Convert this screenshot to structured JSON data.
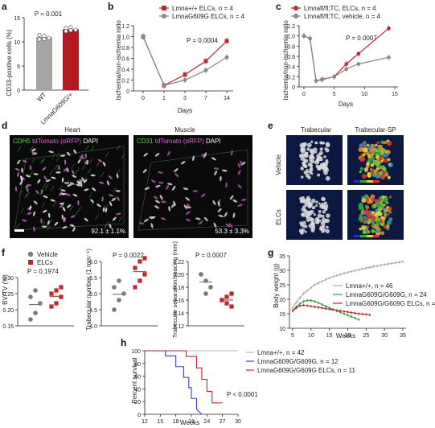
{
  "panels": {
    "a": {
      "label": "a",
      "p": "P = 0.001",
      "ylabel": "CD33-positive cells (%)",
      "yticks": [
        "0",
        "5",
        "10",
        "15"
      ],
      "groups": [
        {
          "name": "WT",
          "value": 11,
          "pts": [
            10.5,
            11.2,
            10.8,
            11.4,
            10.6
          ],
          "color": "#a6a6a6"
        },
        {
          "name": "LmnaG609G/+",
          "value": 12.6,
          "pts": [
            12.2,
            13,
            12.5,
            12.9,
            12.4
          ],
          "color": "#b3191f"
        }
      ]
    },
    "b": {
      "label": "b",
      "legend": [
        "Lmna+/+ ELCs, n = 4",
        "LmnaG609G ELCs, n = 4"
      ],
      "p": "P = 0.0004",
      "xlabel": "Days",
      "ylabel": "Ischemia/non-ischemia ratio",
      "xticks": [
        "0",
        "1",
        "3",
        "7",
        "14"
      ],
      "yticks": [
        "0",
        "0.2",
        "0.4",
        "0.6",
        "0.8",
        "1.0",
        "1.2"
      ]
    },
    "c": {
      "label": "c",
      "legend": [
        "Lmnafl/fl;TC, ELCs, n = 4",
        "Lmnafl/fl;TC, vehicle, n = 4"
      ],
      "p": "P = 0.0007",
      "xlabel": "Days",
      "ylabel": "Ischemia/non-ischemia ratio",
      "xticks": [
        "0",
        "5",
        "10",
        "15"
      ],
      "yticks": [
        "0",
        "0.2",
        "0.4",
        "0.6",
        "0.8",
        "1.0",
        "1.2"
      ]
    },
    "d": {
      "label": "d",
      "heart_title": "Heart",
      "heart_stain": [
        "CDH5",
        "tdTomato (αRFP)",
        "DAPI"
      ],
      "heart_value": "92.1 ± 1.1%",
      "muscle_title": "Muscle",
      "muscle_stain": [
        "CD31",
        "tdTomato (αRFP)",
        "DAPI"
      ],
      "muscle_value": "53.3 ± 3.3%"
    },
    "e": {
      "label": "e",
      "col1": "Trabecular",
      "col2": "Trabecular-SP",
      "row1": "Vehicle",
      "row2": "ELCs"
    },
    "f": {
      "label": "f",
      "legend": [
        "Vehicle",
        "ELCs"
      ],
      "sub1": {
        "p": "P = 0.1974",
        "ylabel": "BV/TV (%)",
        "yticks": [
          "0.15",
          "0.20",
          "0.25",
          "0.30"
        ]
      },
      "sub2": {
        "p": "P = 0.0022",
        "ylabel": "Trabecular number (1 mm⁻¹)",
        "yticks": [
          "4.0",
          "4.5",
          "5.0",
          "5.5",
          "6.0"
        ]
      },
      "sub3": {
        "p": "P = 0.0007",
        "ylabel": "Trabecular separation/spacing (mm)",
        "yticks": [
          "0.12",
          "0.14",
          "0.16",
          "0.18",
          "0.20",
          "0.22"
        ]
      }
    },
    "g": {
      "label": "g",
      "xlabel": "Weeks",
      "ylabel": "Body weight (g)",
      "xticks": [
        "5",
        "10",
        "15",
        "20",
        "25",
        "30",
        "35"
      ],
      "yticks": [
        "10",
        "15",
        "20",
        "25",
        "30",
        "35"
      ],
      "legend": [
        "Lmna+/+, n = 46",
        "LmnaG609G/G609G, n = 24",
        "LmnaG609G/G609G ELCs, n = 11"
      ]
    },
    "h": {
      "label": "h",
      "xlabel": "Weeks",
      "ylabel": "Percent survival",
      "xticks": [
        "12",
        "15",
        "18",
        "21",
        "24",
        "27",
        "30"
      ],
      "yticks": [
        "0",
        "20",
        "40",
        "60",
        "80",
        "100"
      ],
      "legend": [
        "Lmna+/+, n = 42",
        "LmnaG609G/G609G, n = 12",
        "LmnaG609G/G609G ELCs, n = 11"
      ],
      "p": "P < 0.0001"
    }
  },
  "chart_data": [
    {
      "type": "line",
      "panel": "b",
      "x": [
        0,
        1,
        3,
        7,
        14
      ],
      "series": [
        {
          "name": "Lmna+/+ ELCs, n = 4",
          "values": [
            1.0,
            0.1,
            0.3,
            0.55,
            0.92
          ],
          "color": "#c0262d"
        },
        {
          "name": "LmnaG609G ELCs, n = 4",
          "values": [
            1.0,
            0.1,
            0.2,
            0.38,
            0.62
          ],
          "color": "#888888"
        }
      ],
      "xlabel": "Days",
      "ylabel": "Ischemia/non-ischemia ratio",
      "ylim": [
        0,
        1.2
      ]
    },
    {
      "type": "line",
      "panel": "c",
      "x": [
        0,
        1,
        2,
        3,
        5,
        7,
        9,
        14
      ],
      "series": [
        {
          "name": "Lmnafl/fl;TC, ELCs, n = 4",
          "values": [
            1.0,
            0.95,
            0.12,
            0.15,
            0.2,
            0.45,
            0.65,
            1.15
          ],
          "color": "#c0262d"
        },
        {
          "name": "Lmnafl/fl;TC, vehicle, n = 4",
          "values": [
            1.0,
            0.95,
            0.12,
            0.14,
            0.2,
            0.35,
            0.45,
            0.58
          ],
          "color": "#888888"
        }
      ],
      "xlabel": "Days",
      "ylabel": "Ischemia/non-ischemia ratio",
      "ylim": [
        0,
        1.2
      ]
    },
    {
      "type": "line",
      "panel": "g",
      "x_wt": [
        5,
        6,
        7,
        8,
        9,
        10,
        11,
        12,
        13,
        14,
        15,
        16,
        17,
        18,
        19,
        20,
        21,
        22,
        23,
        24,
        25,
        26,
        27,
        28,
        29,
        30,
        31,
        32,
        33,
        34,
        35
      ],
      "series": [
        {
          "name": "Lmna+/+, n = 46",
          "values": [
            17,
            19,
            20.5,
            22,
            23,
            24,
            25,
            25.6,
            26.2,
            26.8,
            27.3,
            27.8,
            28.2,
            28.6,
            29,
            29.3,
            29.6,
            29.9,
            30.2,
            30.5,
            30.8,
            31,
            31.3,
            31.5,
            31.8,
            32,
            32.2,
            32.4,
            32.6,
            32.8,
            33
          ],
          "color": "#aaaaaa"
        },
        {
          "name": "LmnaG609G/G609G, n = 24",
          "values": [
            16,
            17.5,
            18.5,
            19.3,
            19.6,
            19.6,
            19.3,
            18.8,
            18.2,
            17.6,
            17,
            16.5,
            16,
            15.5,
            15,
            14.5,
            14,
            13.5,
            13
          ],
          "color": "#2e9f3a"
        },
        {
          "name": "LmnaG609G/G609G ELCs, n = 11",
          "values": [
            16,
            17,
            17.8,
            18,
            17.8,
            17.6,
            17.4,
            17.2,
            17,
            16.8,
            16.6,
            16.4,
            16.2,
            16,
            15.8,
            15.6,
            15.4,
            15.2,
            15.0,
            14.9,
            14.8,
            14.6
          ],
          "color": "#c0262d"
        }
      ],
      "xlabel": "Weeks",
      "ylabel": "Body weight (g)",
      "ylim": [
        10,
        35
      ],
      "xlim": [
        5,
        35
      ]
    },
    {
      "type": "line",
      "panel": "h",
      "series": [
        {
          "name": "Lmna+/+, n = 42",
          "x": [
            12,
            30
          ],
          "values": [
            100,
            100
          ],
          "color": "#bbbbbb"
        },
        {
          "name": "LmnaG609G/G609G, n = 12",
          "x": [
            12,
            16,
            16,
            18,
            18,
            19.5,
            19.5,
            20.5,
            20.5,
            21,
            21,
            22,
            22,
            23
          ],
          "values": [
            100,
            100,
            92,
            92,
            75,
            75,
            58,
            58,
            42,
            42,
            25,
            25,
            8,
            0
          ],
          "color": "#3a3acf"
        },
        {
          "name": "LmnaG609G/G609G ELCs, n = 11",
          "x": [
            12,
            20,
            20,
            22,
            22,
            23,
            23,
            24,
            24,
            25,
            25,
            26,
            26,
            27
          ],
          "values": [
            100,
            100,
            91,
            91,
            73,
            73,
            55,
            55,
            36,
            36,
            18,
            18,
            18,
            18
          ],
          "color": "#c0262d"
        }
      ],
      "xlabel": "Weeks",
      "ylabel": "Percent survival",
      "ylim": [
        0,
        100
      ],
      "xlim": [
        12,
        30
      ]
    },
    {
      "type": "scatter",
      "panel": "f",
      "series": [
        {
          "name": "Vehicle",
          "bv_tv": [
            0.17,
            0.19,
            0.22,
            0.24,
            0.26
          ],
          "tb_n": [
            4.5,
            4.8,
            5.0,
            5.2,
            5.4
          ],
          "tb_sp": [
            0.2,
            0.19,
            0.18,
            0.2,
            0.17
          ]
        },
        {
          "name": "ELCs",
          "bv_tv": [
            0.21,
            0.22,
            0.24,
            0.25,
            0.26,
            0.27
          ],
          "tb_n": [
            5.2,
            5.4,
            5.6,
            5.8,
            6.0,
            6.1
          ],
          "tb_sp": [
            0.16,
            0.155,
            0.17,
            0.16,
            0.165,
            0.15
          ]
        }
      ]
    }
  ]
}
